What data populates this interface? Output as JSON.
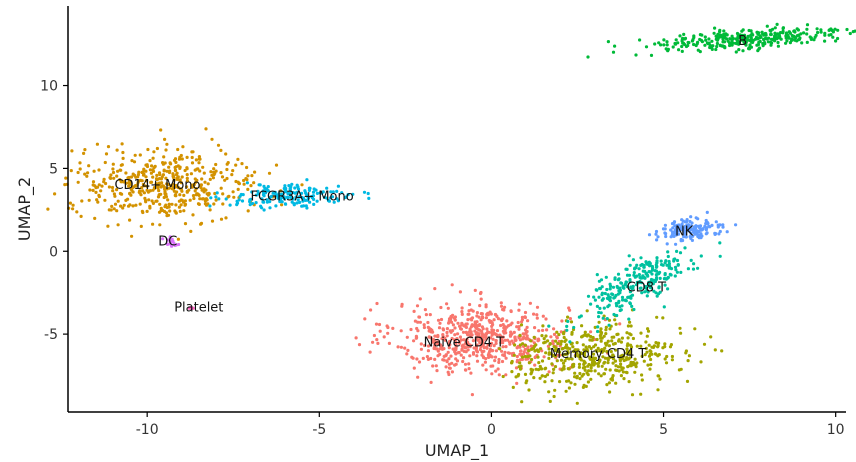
{
  "chart_data": {
    "type": "scatter",
    "title": "",
    "xlabel": "UMAP_1",
    "ylabel": "UMAP_2",
    "xlim": [
      -12.3,
      10.3
    ],
    "ylim": [
      -9.7,
      14.8
    ],
    "xticks": [
      -10,
      -5,
      0,
      5,
      10
    ],
    "yticks": [
      -5,
      0,
      5,
      10
    ],
    "xtick_labels": [
      "-10",
      "-5",
      "0",
      "5",
      "10"
    ],
    "ytick_labels": [
      "-5",
      "0",
      "5",
      "10"
    ],
    "grid": false,
    "legend": "none",
    "clusters": [
      {
        "label": "Naive CD4 T",
        "color": "#F8766D",
        "center": [
          -0.3,
          -5.2
        ],
        "label_pos": [
          -0.8,
          -5.5
        ]
      },
      {
        "label": "Memory CD4 T",
        "color": "#A3A500",
        "center": [
          3.0,
          -6.3
        ],
        "label_pos": [
          3.1,
          -6.2
        ]
      },
      {
        "label": "CD14+ Mono",
        "color": "#D39200",
        "center": [
          -9.5,
          4.0
        ],
        "label_pos": [
          -9.7,
          4.0
        ]
      },
      {
        "label": "B",
        "color": "#00BA38",
        "center": [
          7.5,
          12.8
        ],
        "label_pos": [
          7.3,
          12.7
        ]
      },
      {
        "label": "CD8 T",
        "color": "#00C19F",
        "center": [
          4.2,
          -2.0
        ],
        "label_pos": [
          4.5,
          -2.2
        ]
      },
      {
        "label": "FCGR3A+ Mono",
        "color": "#00B9E3",
        "center": [
          -5.8,
          3.3
        ],
        "label_pos": [
          -5.5,
          3.3
        ]
      },
      {
        "label": "NK",
        "color": "#619CFF",
        "center": [
          5.7,
          1.3
        ],
        "label_pos": [
          5.6,
          1.2
        ]
      },
      {
        "label": "DC",
        "color": "#DB72FB",
        "center": [
          -9.3,
          0.6
        ],
        "label_pos": [
          -9.4,
          0.6
        ]
      },
      {
        "label": "Platelet",
        "color": "#FF61C3",
        "center": [
          -8.6,
          -3.4
        ],
        "label_pos": [
          -8.5,
          -3.4
        ]
      }
    ]
  }
}
